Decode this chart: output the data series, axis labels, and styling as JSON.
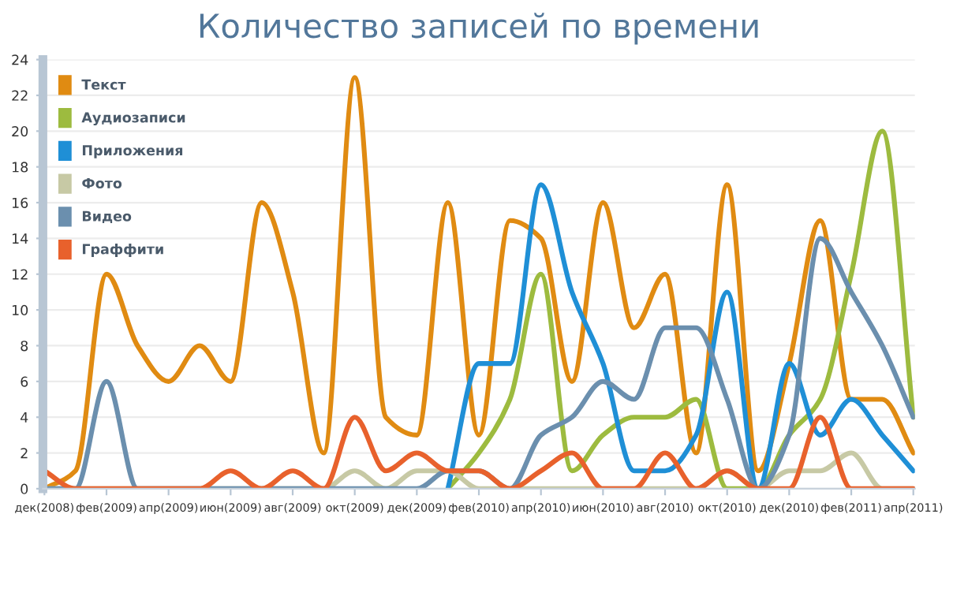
{
  "chart_data": {
    "type": "line",
    "title": "Количество записей по времени",
    "categories": [
      "дек(2008)",
      null,
      "фев(2009)",
      null,
      "апр(2009)",
      null,
      "июн(2009)",
      null,
      "авг(2009)",
      null,
      "окт(2009)",
      null,
      "дек(2009)",
      null,
      "фев(2010)",
      null,
      "апр(2010)",
      null,
      "июн(2010)",
      null,
      "авг(2010)",
      null,
      "окт(2010)",
      null,
      "дек(2010)",
      null,
      "фев(2011)",
      null,
      "апр(2011)"
    ],
    "series": [
      {
        "name": "Текст",
        "color": "#e08b12",
        "values": [
          0,
          1,
          12,
          8,
          6,
          8,
          6,
          16,
          11,
          2,
          23,
          4,
          3,
          16,
          3,
          15,
          14,
          6,
          16,
          9,
          12,
          2,
          17,
          1,
          7,
          15,
          5,
          5,
          2
        ]
      },
      {
        "name": "Аудиозаписи",
        "color": "#9dbb3f",
        "values": [
          null,
          null,
          null,
          null,
          null,
          null,
          null,
          null,
          null,
          null,
          null,
          null,
          null,
          0,
          2,
          5,
          12,
          1,
          3,
          4,
          4,
          5,
          0,
          0,
          3,
          5,
          12,
          20,
          4
        ]
      },
      {
        "name": "Приложения",
        "color": "#1f8fd6",
        "values": [
          null,
          null,
          null,
          null,
          null,
          null,
          null,
          null,
          null,
          null,
          null,
          null,
          null,
          0,
          7,
          7,
          17,
          11,
          7,
          1,
          1,
          3,
          11,
          0,
          7,
          3,
          5,
          3,
          1
        ]
      },
      {
        "name": "Фото",
        "color": "#c7c9a5",
        "values": [
          0,
          0,
          0,
          0,
          0,
          0,
          0,
          0,
          0,
          0,
          1,
          0,
          1,
          1,
          0,
          0,
          0,
          0,
          0,
          0,
          0,
          0,
          1,
          0,
          1,
          1,
          2,
          0,
          0
        ]
      },
      {
        "name": "Видео",
        "color": "#6b8fae",
        "values": [
          0,
          0,
          6,
          0,
          0,
          0,
          0,
          0,
          0,
          0,
          0,
          0,
          0,
          1,
          1,
          0,
          3,
          4,
          6,
          5,
          9,
          9,
          5,
          0,
          3,
          14,
          11,
          8,
          4
        ]
      },
      {
        "name": "Граффити",
        "color": "#e8612c",
        "values": [
          1,
          0,
          0,
          0,
          0,
          0,
          1,
          0,
          1,
          0,
          4,
          1,
          2,
          1,
          1,
          0,
          1,
          2,
          0,
          0,
          2,
          0,
          1,
          0,
          0,
          4,
          0,
          0,
          0
        ]
      }
    ],
    "ylim": [
      0,
      24
    ],
    "yticks": [
      0,
      2,
      4,
      6,
      8,
      10,
      12,
      14,
      16,
      18,
      20,
      22,
      24
    ],
    "grid": "y",
    "legend": "top left",
    "marker": "none",
    "line_style": "solid"
  }
}
